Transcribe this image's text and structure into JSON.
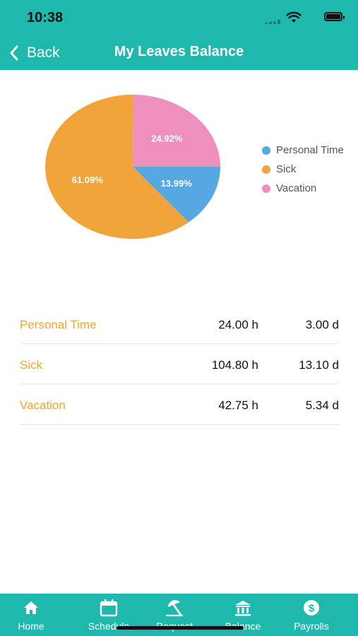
{
  "status": {
    "time": "10:38"
  },
  "header": {
    "back_label": "Back",
    "title": "My Leaves Balance"
  },
  "chart_data": {
    "type": "pie",
    "slices": [
      {
        "label": "Personal Time",
        "value": 13.99,
        "display": "13.99%",
        "color": "#56a8e1"
      },
      {
        "label": "Sick",
        "value": 61.09,
        "display": "61.09%",
        "color": "#f0a43a"
      },
      {
        "label": "Vacation",
        "value": 24.92,
        "display": "24.92%",
        "color": "#ef8fbd"
      }
    ],
    "legend_position": "right"
  },
  "legend": [
    {
      "label": "Personal Time",
      "color": "#56a8e1"
    },
    {
      "label": "Sick",
      "color": "#f0a43a"
    },
    {
      "label": "Vacation",
      "color": "#ef8fbd"
    }
  ],
  "balances": [
    {
      "name": "Personal Time",
      "hours": "24.00 h",
      "days": "3.00 d"
    },
    {
      "name": "Sick",
      "hours": "104.80 h",
      "days": "13.10 d"
    },
    {
      "name": "Vacation",
      "hours": "42.75 h",
      "days": "5.34 d"
    }
  ],
  "tabs": [
    {
      "label": "Home",
      "icon": "home-icon"
    },
    {
      "label": "Schedule",
      "icon": "calendar-icon"
    },
    {
      "label": "Request",
      "icon": "beach-umbrella-icon"
    },
    {
      "label": "Balance",
      "icon": "bank-icon"
    },
    {
      "label": "Payrolls",
      "icon": "dollar-icon"
    }
  ],
  "colors": {
    "accent": "#1eb8ad",
    "label_orange": "#f0a431"
  }
}
